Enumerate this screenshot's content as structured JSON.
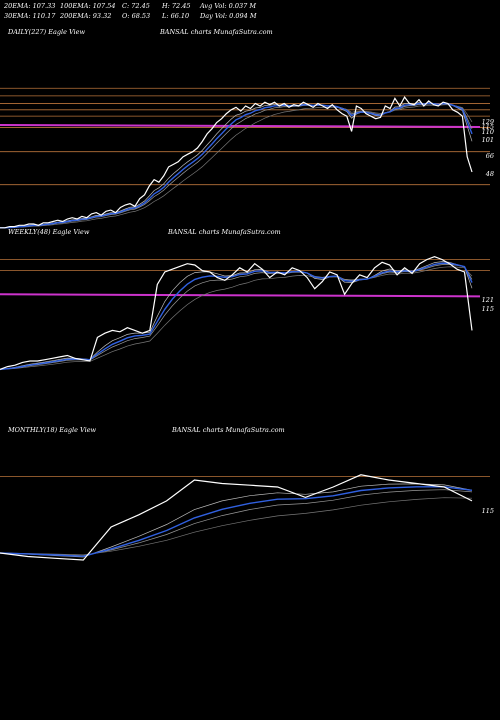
{
  "header": {
    "row1": [
      "20EMA: 107.33",
      "100EMA: 107.54",
      "C: 72.45",
      "H: 72.45",
      "Avg Vol: 0.037 M"
    ],
    "row2": [
      "30EMA: 110.17",
      "200EMA: 93.32",
      "O: 68.53",
      "L: 66.10",
      "Day Vol: 0.094 M"
    ]
  },
  "colors": {
    "background": "#000000",
    "price": "#ffffff",
    "ema_blue": "#3060e0",
    "magenta": "#cc33cc",
    "orange": "#b8733a"
  },
  "chart_data": [
    {
      "type": "line",
      "name": "daily",
      "title_left": "DAILY(227) Eagle  View",
      "title_center": "BANSAL charts MunafaSutra.com",
      "y_ticks": [
        "129",
        "115",
        "110",
        "101",
        "66",
        "48"
      ],
      "ylim": [
        40,
        170
      ],
      "hlines_orange": [
        132,
        126,
        120,
        115,
        110,
        101,
        82,
        56
      ],
      "hline_magenta": 103,
      "series": {
        "price": [
          22,
          22,
          23,
          23,
          24,
          24,
          25,
          25,
          24,
          26,
          26,
          27,
          28,
          27,
          29,
          30,
          29,
          31,
          30,
          33,
          34,
          32,
          35,
          36,
          34,
          38,
          40,
          41,
          39,
          45,
          48,
          55,
          60,
          58,
          63,
          70,
          72,
          74,
          78,
          80,
          82,
          85,
          90,
          96,
          100,
          105,
          108,
          112,
          115,
          117,
          114,
          118,
          116,
          120,
          118,
          121,
          119,
          121,
          118,
          120,
          117,
          119,
          118,
          121,
          119,
          117,
          120,
          118,
          116,
          119,
          115,
          112,
          110,
          98,
          118,
          116,
          112,
          110,
          108,
          109,
          118,
          116,
          124,
          118,
          125,
          120,
          119,
          123,
          118,
          122,
          119,
          118,
          121,
          120,
          115,
          113,
          110,
          78,
          66
        ]
      }
    },
    {
      "type": "line",
      "name": "weekly",
      "title_left": "WEEKLY(48) Eagle  View",
      "title_center": "BANSAL charts MunafaSutra.com",
      "y_ticks": [
        "121",
        "115"
      ],
      "ylim": [
        20,
        135
      ],
      "hlines_orange": [
        121,
        113
      ],
      "hline_magenta": 96,
      "series": {
        "price": [
          42,
          44,
          45,
          47,
          48,
          48,
          49,
          50,
          51,
          52,
          50,
          49,
          48,
          65,
          68,
          70,
          69,
          72,
          70,
          68,
          70,
          103,
          112,
          114,
          116,
          118,
          117,
          113,
          112,
          108,
          106,
          110,
          115,
          112,
          118,
          114,
          108,
          112,
          110,
          115,
          113,
          108,
          100,
          105,
          112,
          110,
          96,
          104,
          110,
          108,
          115,
          119,
          117,
          110,
          115,
          111,
          118,
          121,
          123,
          121,
          118,
          114,
          112,
          70
        ]
      }
    },
    {
      "type": "line",
      "name": "monthly",
      "title_left": "MONTHLY(18) Eagle  View",
      "title_center": "BANSAL charts MunafaSutra.com",
      "y_ticks": [
        "115"
      ],
      "ylim": [
        20,
        135
      ],
      "hlines_orange": [
        114
      ],
      "hline_magenta": null,
      "series": {
        "price": [
          70,
          68,
          67,
          66,
          85,
          92,
          100,
          112,
          110,
          109,
          108,
          102,
          108,
          115,
          112,
          110,
          108,
          100
        ]
      }
    }
  ]
}
